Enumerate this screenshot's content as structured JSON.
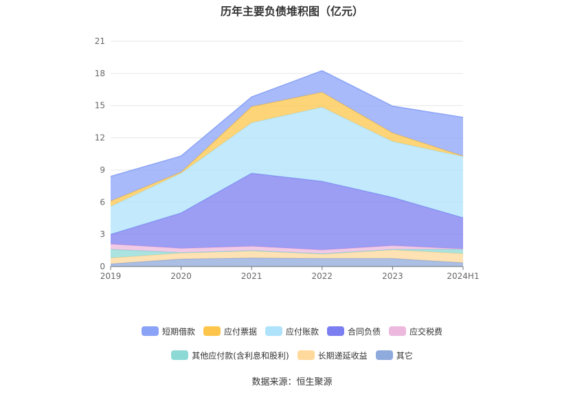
{
  "title": "历年主要负债堆积图（亿元）",
  "source": "数据来源：恒生聚源",
  "chart_data": {
    "type": "area",
    "stacked": true,
    "title": "历年主要负债堆积图（亿元）",
    "categories": [
      "2019",
      "2020",
      "2021",
      "2022",
      "2023",
      "2024H1"
    ],
    "ylim": [
      0,
      21
    ],
    "yticks": [
      "0",
      "3",
      "6",
      "9",
      "12",
      "15",
      "18",
      "21"
    ],
    "grid": true,
    "legend_position": "bottom",
    "series": [
      {
        "name": "其它",
        "color": "#8faadc",
        "values": [
          0.25,
          0.7,
          0.8,
          0.75,
          0.75,
          0.35
        ]
      },
      {
        "name": "长期递延收益",
        "color": "#ffd89b",
        "values": [
          0.55,
          0.55,
          0.65,
          0.4,
          0.8,
          0.85
        ]
      },
      {
        "name": "其他应付款(含利息和股利)",
        "color": "#8dd9d6",
        "values": [
          0.8,
          0.05,
          0.05,
          0.05,
          0.05,
          0.4
        ]
      },
      {
        "name": "应交税费",
        "color": "#ecb8dd",
        "values": [
          0.5,
          0.4,
          0.4,
          0.35,
          0.35,
          0.05
        ]
      },
      {
        "name": "合同负债",
        "color": "#7b7ef0",
        "values": [
          0.9,
          3.3,
          6.8,
          6.4,
          4.5,
          2.9
        ]
      },
      {
        "name": "应付账款",
        "color": "#aee3fb",
        "values": [
          2.6,
          3.7,
          4.7,
          6.9,
          5.2,
          5.7
        ]
      },
      {
        "name": "应付票据",
        "color": "#fdc64b",
        "values": [
          0.5,
          0.1,
          1.5,
          1.4,
          0.8,
          0.05
        ]
      },
      {
        "name": "短期借款",
        "color": "#8ba3f7",
        "values": [
          2.3,
          1.5,
          0.9,
          2.0,
          2.5,
          3.6
        ]
      }
    ],
    "legend_rows": [
      [
        "短期借款",
        "应付票据",
        "应付账款",
        "合同负债",
        "应交税费"
      ],
      [
        "其他应付款(含利息和股利)",
        "长期递延收益",
        "其它"
      ]
    ]
  }
}
